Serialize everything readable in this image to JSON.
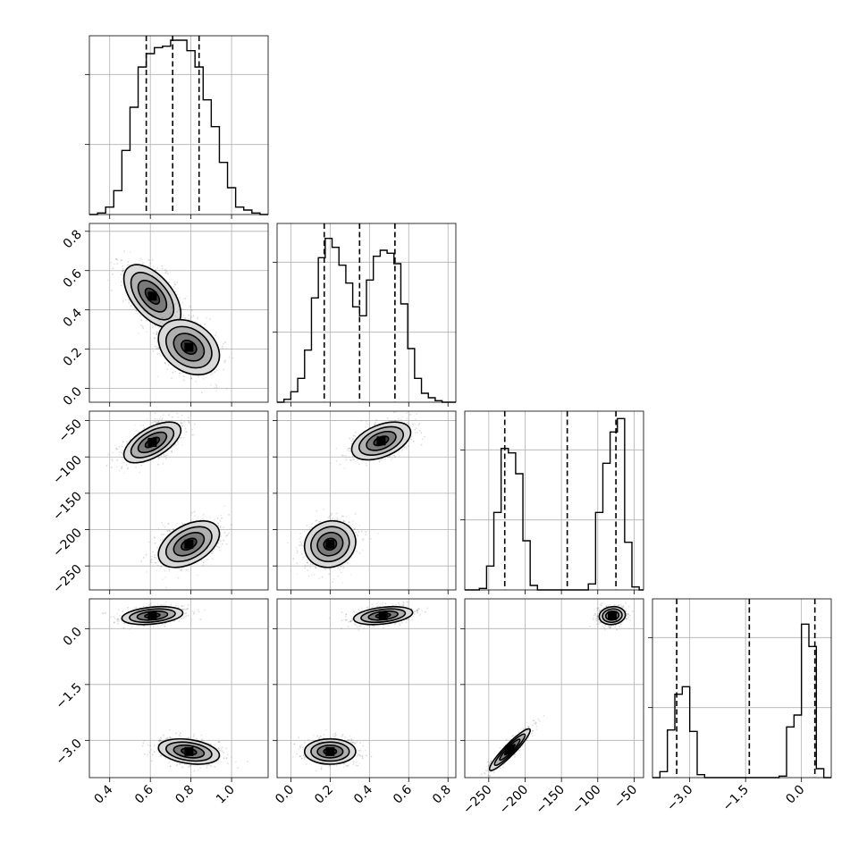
{
  "chart_data": {
    "type": "corner",
    "parameters": [
      {
        "index": 0,
        "range": [
          0.3,
          1.18
        ],
        "ticks": [
          0.4,
          0.6,
          0.8,
          1.0
        ],
        "tick_labels": [
          "0.4",
          "0.6",
          "0.8",
          "1.0"
        ]
      },
      {
        "index": 1,
        "range": [
          -0.07,
          0.84
        ],
        "ticks": [
          0.0,
          0.2,
          0.4,
          0.6,
          0.8
        ],
        "tick_labels": [
          "0.0",
          "0.2",
          "0.4",
          "0.6",
          "0.8"
        ]
      },
      {
        "index": 2,
        "range": [
          -283,
          -37
        ],
        "ticks": [
          -250,
          -200,
          -150,
          -100,
          -50
        ],
        "tick_labels": [
          "−250",
          "−200",
          "−150",
          "−100",
          "−50"
        ]
      },
      {
        "index": 3,
        "range": [
          -4.0,
          0.8
        ],
        "ticks": [
          -3.0,
          -1.5,
          0.0
        ],
        "tick_labels": [
          "−3.0",
          "−1.5",
          "0.0"
        ]
      }
    ],
    "histograms": [
      {
        "param": 0,
        "ylim": [
          0,
          1.2
        ],
        "bin_edges": [
          0.3,
          0.34,
          0.38,
          0.42,
          0.46,
          0.5,
          0.54,
          0.58,
          0.62,
          0.66,
          0.7,
          0.74,
          0.78,
          0.82,
          0.86,
          0.9,
          0.94,
          0.98,
          1.02,
          1.06,
          1.1,
          1.14,
          1.18
        ],
        "counts": [
          0,
          0.01,
          0.05,
          0.16,
          0.43,
          0.72,
          0.99,
          1.08,
          1.12,
          1.13,
          1.17,
          1.17,
          1.1,
          0.99,
          0.77,
          0.59,
          0.35,
          0.18,
          0.05,
          0.03,
          0.01,
          0
        ],
        "quantiles": [
          0.58,
          0.71,
          0.84
        ]
      },
      {
        "param": 1,
        "ylim": [
          0,
          1.2
        ],
        "bin_edges": [
          -0.07,
          -0.035,
          0.0,
          0.035,
          0.07,
          0.105,
          0.14,
          0.175,
          0.21,
          0.245,
          0.28,
          0.315,
          0.35,
          0.385,
          0.42,
          0.455,
          0.49,
          0.525,
          0.56,
          0.595,
          0.63,
          0.665,
          0.7,
          0.735,
          0.77,
          0.805,
          0.84
        ],
        "counts": [
          0,
          0.02,
          0.07,
          0.16,
          0.35,
          0.7,
          0.97,
          1.1,
          1.04,
          0.92,
          0.8,
          0.64,
          0.58,
          0.82,
          0.98,
          1.02,
          1.0,
          0.93,
          0.66,
          0.36,
          0.16,
          0.06,
          0.03,
          0.01,
          0,
          0
        ],
        "quantiles": [
          0.17,
          0.35,
          0.53
        ]
      },
      {
        "param": 2,
        "ylim": [
          0,
          1.2
        ],
        "bin_edges": [
          -283,
          -273,
          -263,
          -253,
          -243,
          -233,
          -223,
          -213,
          -203,
          -193,
          -183,
          -173,
          -163,
          -153,
          -143,
          -133,
          -123,
          -113,
          -103,
          -93,
          -83,
          -73,
          -63,
          -53,
          -43,
          -37
        ],
        "counts": [
          0,
          0,
          0.01,
          0.16,
          0.52,
          0.95,
          0.92,
          0.78,
          0.33,
          0.03,
          0,
          0,
          0,
          0,
          0,
          0,
          0,
          0.04,
          0.52,
          0.85,
          1.06,
          1.15,
          0.32,
          0.02,
          0
        ],
        "quantiles": [
          -228,
          -142,
          -75
        ]
      },
      {
        "param": 3,
        "ylim": [
          0,
          1.2
        ],
        "bin_edges": [
          -4.0,
          -3.8,
          -3.6,
          -3.4,
          -3.2,
          -3.0,
          -2.8,
          -2.6,
          -2.4,
          -2.2,
          -2.0,
          -1.8,
          -1.6,
          -1.4,
          -1.2,
          -1.0,
          -0.8,
          -0.6,
          -0.4,
          -0.2,
          0.0,
          0.2,
          0.4,
          0.6,
          0.8
        ],
        "counts": [
          0,
          0.04,
          0.32,
          0.56,
          0.61,
          0.31,
          0.02,
          0,
          0,
          0,
          0,
          0,
          0,
          0,
          0,
          0,
          0,
          0.01,
          0.34,
          0.42,
          1.03,
          0.88,
          0.06,
          0
        ],
        "quantiles": [
          -3.35,
          -1.4,
          0.36
        ]
      }
    ],
    "joint_panels": [
      {
        "x": 0,
        "y": 1,
        "modes": [
          {
            "cx": 0.61,
            "cy": 0.47,
            "sx": 0.07,
            "sy": 0.08,
            "rho": -0.55,
            "weight": 0.5
          },
          {
            "cx": 0.79,
            "cy": 0.21,
            "sx": 0.075,
            "sy": 0.07,
            "rho": -0.3,
            "weight": 0.5
          }
        ]
      },
      {
        "x": 0,
        "y": 2,
        "modes": [
          {
            "cx": 0.61,
            "cy": -80,
            "sx": 0.07,
            "sy": 14,
            "rho": 0.6,
            "weight": 0.5
          },
          {
            "cx": 0.79,
            "cy": -220,
            "sx": 0.075,
            "sy": 16,
            "rho": 0.45,
            "weight": 0.5
          }
        ]
      },
      {
        "x": 1,
        "y": 2,
        "modes": [
          {
            "cx": 0.46,
            "cy": -78,
            "sx": 0.075,
            "sy": 13,
            "rho": 0.45,
            "weight": 0.5
          },
          {
            "cx": 0.2,
            "cy": -220,
            "sx": 0.065,
            "sy": 16,
            "rho": 0.1,
            "weight": 0.5
          }
        ]
      },
      {
        "x": 0,
        "y": 3,
        "modes": [
          {
            "cx": 0.61,
            "cy": 0.35,
            "sx": 0.075,
            "sy": 0.12,
            "rho": 0.3,
            "weight": 0.5
          },
          {
            "cx": 0.79,
            "cy": -3.3,
            "sx": 0.075,
            "sy": 0.17,
            "rho": -0.3,
            "weight": 0.5
          }
        ]
      },
      {
        "x": 1,
        "y": 3,
        "modes": [
          {
            "cx": 0.47,
            "cy": 0.35,
            "sx": 0.075,
            "sy": 0.12,
            "rho": 0.35,
            "weight": 0.5
          },
          {
            "cx": 0.2,
            "cy": -3.3,
            "sx": 0.065,
            "sy": 0.17,
            "rho": 0.0,
            "weight": 0.5
          }
        ]
      },
      {
        "x": 2,
        "y": 3,
        "modes": [
          {
            "cx": -80,
            "cy": 0.35,
            "sx": 9,
            "sy": 0.12,
            "rho": 0.1,
            "weight": 0.5
          },
          {
            "cx": -221,
            "cy": -3.25,
            "sx": 14,
            "sy": 0.28,
            "rho": 0.93,
            "weight": 0.5
          }
        ]
      }
    ],
    "contour_levels_sigma": [
      0.5,
      1.0,
      1.5,
      2.0
    ],
    "grid": true,
    "legend": "none"
  }
}
